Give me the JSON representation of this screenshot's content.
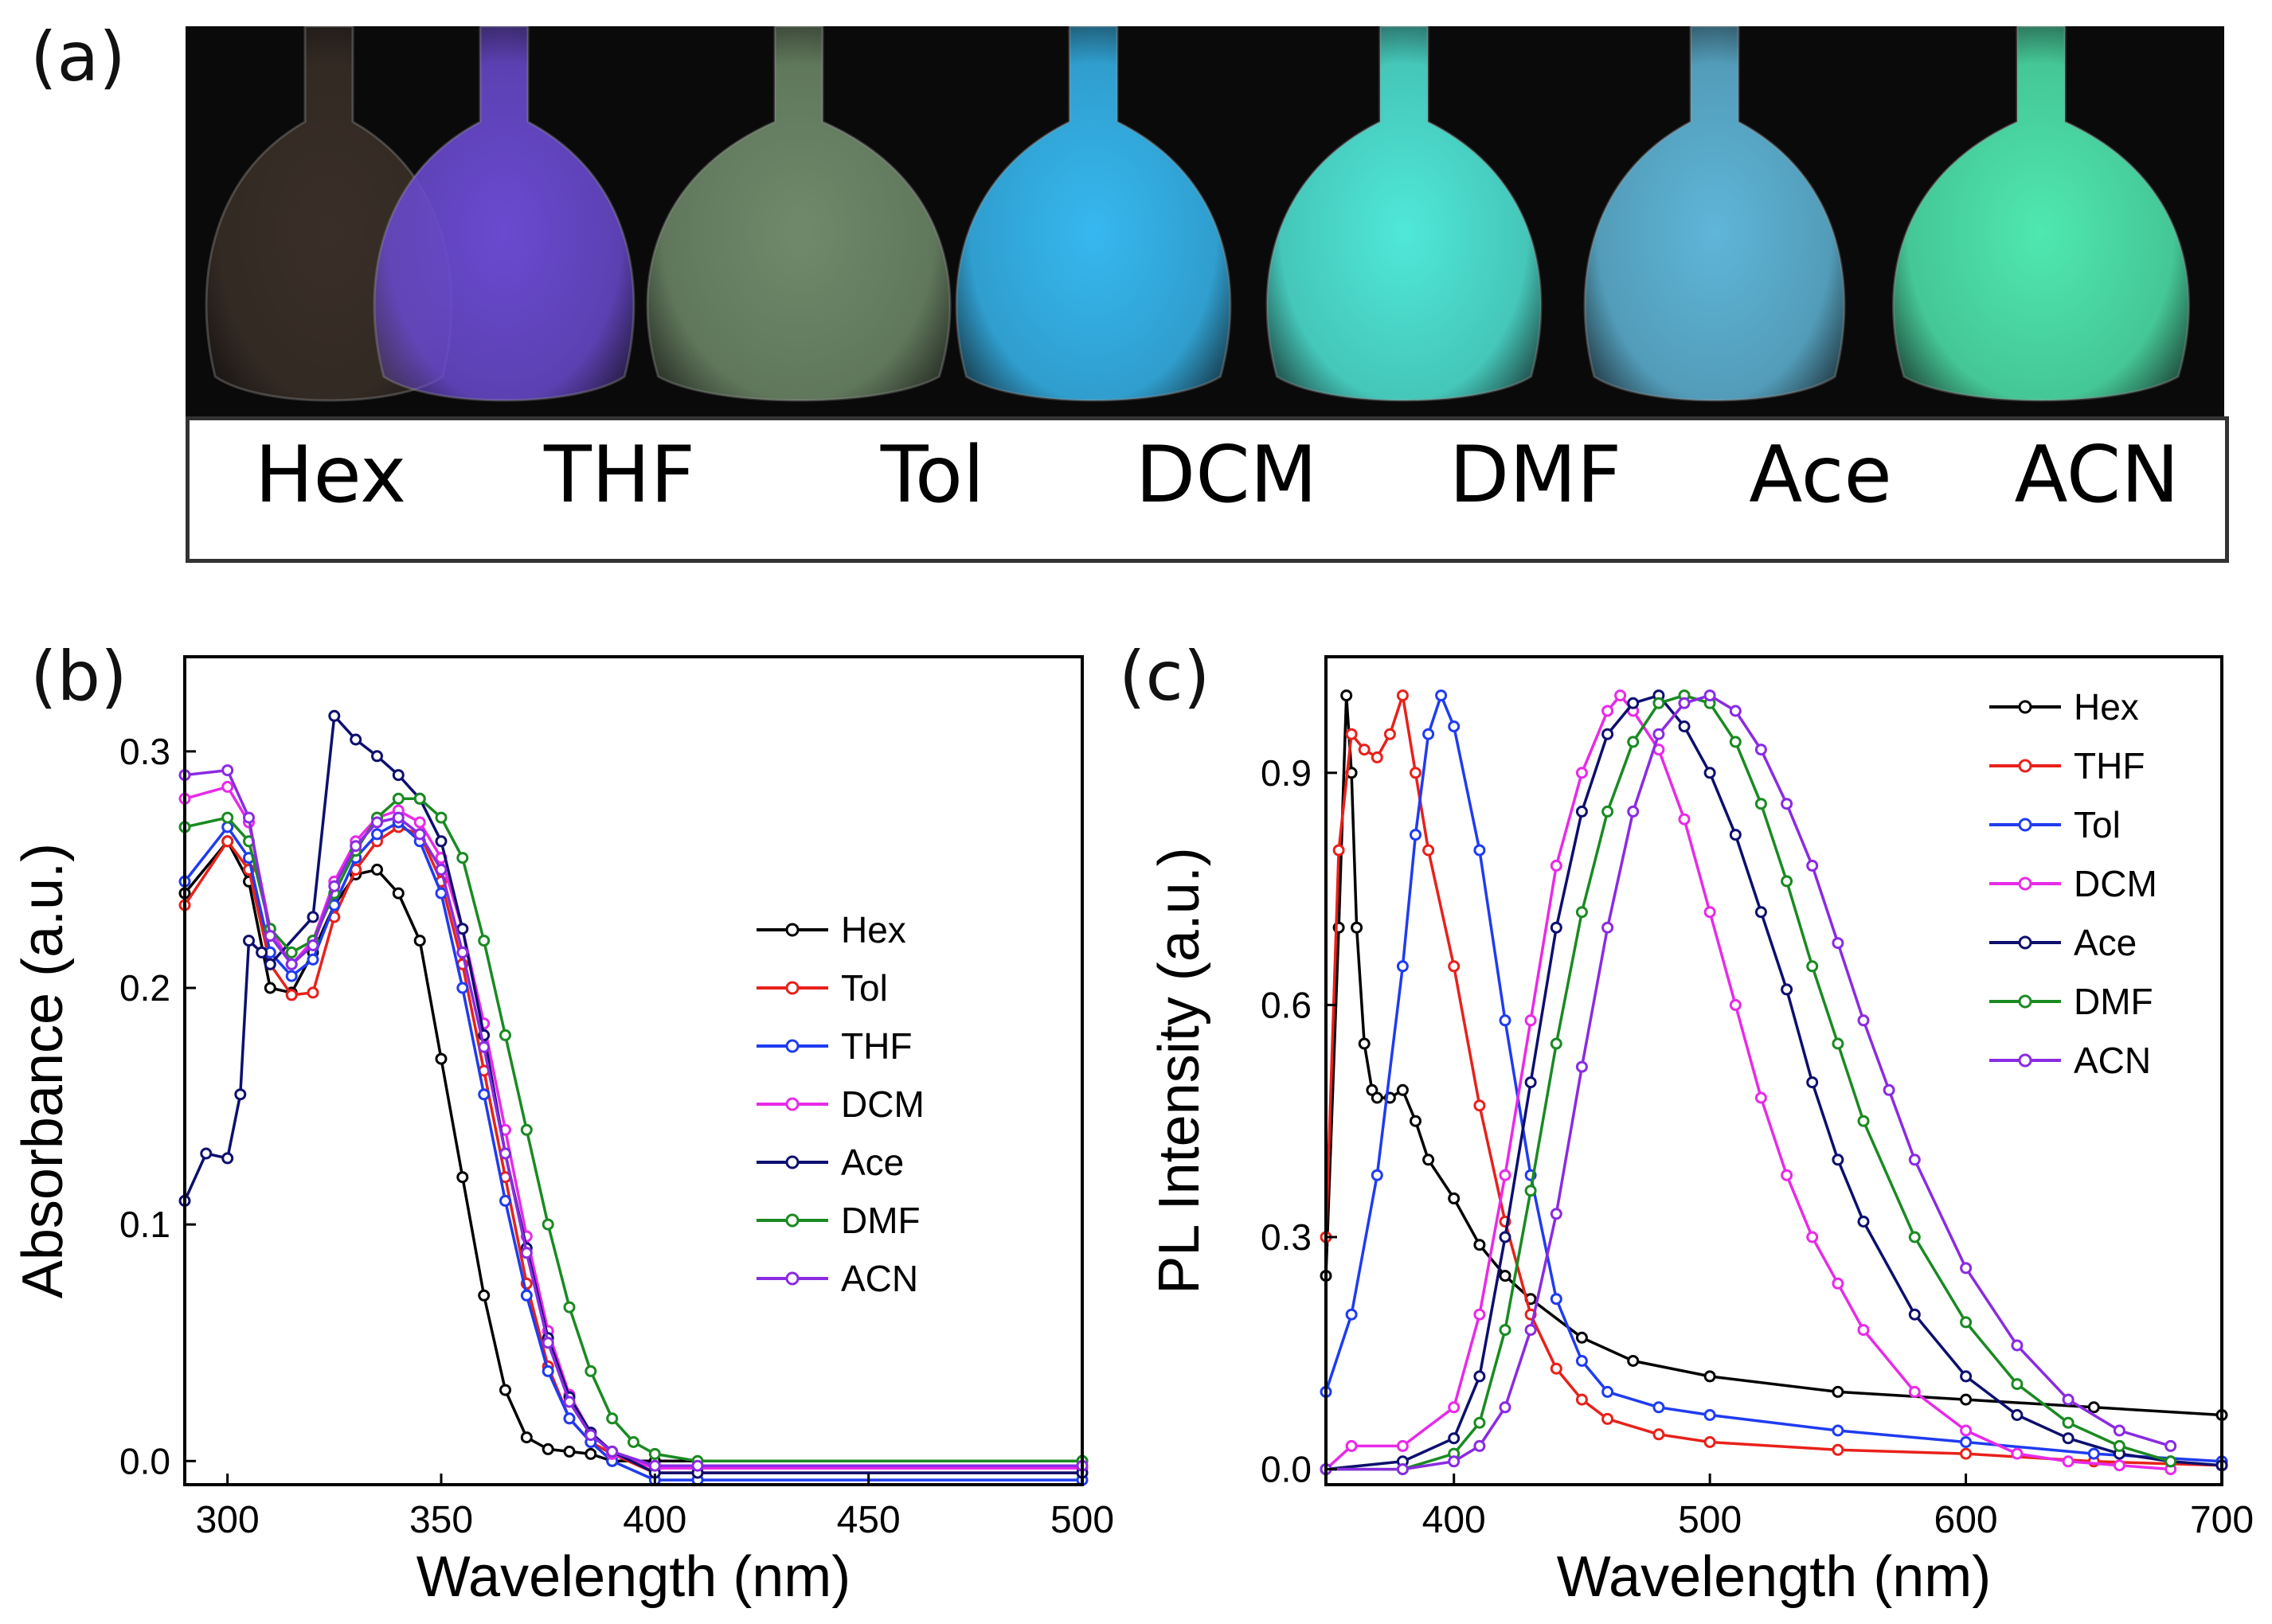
{
  "panels": {
    "a": "(a)",
    "b": "(b)",
    "c": "(c)"
  },
  "photo": {
    "solvents": [
      "Hex",
      "THF",
      "Tol",
      "DCM",
      "DMF",
      "Ace",
      "ACN"
    ],
    "glow_colors": [
      "#3a2f28",
      "#6a4ad0",
      "#6f8a6a",
      "#36b8f0",
      "#4fe8d8",
      "#5fb6d8",
      "#4fe8b0"
    ]
  },
  "chart_data": [
    {
      "panel": "b",
      "type": "line",
      "title": "",
      "xlabel": "Wavelength (nm)",
      "ylabel": "Absorbance (a.u.)",
      "xlim": [
        290,
        500
      ],
      "ylim": [
        -0.01,
        0.34
      ],
      "xticks": [
        "300",
        "350",
        "400",
        "450",
        "500"
      ],
      "yticks": [
        "0.0",
        "0.1",
        "0.2",
        "0.3"
      ],
      "legend_position": "right-middle",
      "series": [
        {
          "name": "Hex",
          "color": "#000000",
          "x": [
            290,
            300,
            305,
            310,
            315,
            320,
            325,
            330,
            335,
            340,
            345,
            350,
            355,
            360,
            365,
            370,
            375,
            380,
            385,
            390,
            400,
            500
          ],
          "y": [
            0.24,
            0.262,
            0.245,
            0.2,
            0.198,
            0.215,
            0.235,
            0.248,
            0.25,
            0.24,
            0.22,
            0.17,
            0.12,
            0.07,
            0.03,
            0.01,
            0.005,
            0.004,
            0.003,
            0.0,
            0.0,
            0.0
          ]
        },
        {
          "name": "Tol",
          "color": "#e8211b",
          "x": [
            290,
            300,
            305,
            310,
            315,
            320,
            325,
            330,
            335,
            340,
            345,
            350,
            355,
            360,
            365,
            370,
            375,
            380,
            385,
            390,
            400,
            410,
            500
          ],
          "y": [
            0.235,
            0.262,
            0.25,
            0.21,
            0.197,
            0.198,
            0.23,
            0.25,
            0.262,
            0.268,
            0.265,
            0.245,
            0.21,
            0.165,
            0.12,
            0.075,
            0.04,
            0.018,
            0.008,
            0.003,
            -0.005,
            -0.005,
            -0.005
          ]
        },
        {
          "name": "THF",
          "color": "#1f3cf0",
          "x": [
            290,
            300,
            305,
            310,
            315,
            320,
            325,
            330,
            335,
            340,
            345,
            350,
            355,
            360,
            365,
            370,
            375,
            380,
            385,
            390,
            400,
            410,
            500
          ],
          "y": [
            0.245,
            0.268,
            0.255,
            0.215,
            0.205,
            0.212,
            0.235,
            0.255,
            0.265,
            0.27,
            0.262,
            0.24,
            0.2,
            0.155,
            0.11,
            0.07,
            0.038,
            0.018,
            0.008,
            0.0,
            -0.008,
            -0.008,
            -0.008
          ]
        },
        {
          "name": "DCM",
          "color": "#e82ae8",
          "x": [
            290,
            300,
            305,
            310,
            315,
            320,
            325,
            330,
            335,
            340,
            345,
            350,
            355,
            360,
            365,
            370,
            375,
            380,
            385,
            390,
            400,
            410,
            500
          ],
          "y": [
            0.28,
            0.285,
            0.27,
            0.225,
            0.21,
            0.22,
            0.245,
            0.262,
            0.272,
            0.275,
            0.27,
            0.255,
            0.225,
            0.185,
            0.14,
            0.095,
            0.055,
            0.028,
            0.012,
            0.003,
            -0.003,
            -0.003,
            -0.003
          ]
        },
        {
          "name": "Ace",
          "color": "#0d0f6e",
          "x": [
            290,
            295,
            300,
            303,
            305,
            308,
            310,
            320,
            325,
            330,
            335,
            340,
            345,
            350,
            355,
            360,
            365,
            370,
            375,
            380,
            385,
            390,
            400,
            410,
            500
          ],
          "y": [
            0.11,
            0.13,
            0.128,
            0.155,
            0.22,
            0.215,
            0.21,
            0.23,
            0.315,
            0.305,
            0.298,
            0.29,
            0.28,
            0.262,
            0.225,
            0.18,
            0.13,
            0.09,
            0.052,
            0.027,
            0.012,
            0.004,
            -0.005,
            -0.005,
            -0.005
          ]
        },
        {
          "name": "DMF",
          "color": "#1a8a22",
          "x": [
            290,
            300,
            305,
            310,
            315,
            320,
            325,
            330,
            335,
            340,
            345,
            350,
            355,
            360,
            365,
            370,
            375,
            380,
            385,
            390,
            395,
            400,
            410,
            500
          ],
          "y": [
            0.268,
            0.272,
            0.262,
            0.225,
            0.215,
            0.22,
            0.24,
            0.258,
            0.272,
            0.28,
            0.28,
            0.272,
            0.255,
            0.22,
            0.18,
            0.14,
            0.1,
            0.065,
            0.038,
            0.018,
            0.008,
            0.003,
            0.0,
            0.0
          ]
        },
        {
          "name": "ACN",
          "color": "#8a2be2",
          "x": [
            290,
            300,
            305,
            310,
            315,
            320,
            325,
            330,
            335,
            340,
            345,
            350,
            355,
            360,
            365,
            370,
            375,
            380,
            385,
            390,
            400,
            410,
            500
          ],
          "y": [
            0.29,
            0.292,
            0.272,
            0.222,
            0.21,
            0.218,
            0.243,
            0.26,
            0.27,
            0.272,
            0.265,
            0.25,
            0.215,
            0.175,
            0.13,
            0.088,
            0.05,
            0.025,
            0.011,
            0.004,
            -0.002,
            -0.002,
            -0.002
          ]
        }
      ]
    },
    {
      "panel": "c",
      "type": "line",
      "title": "",
      "xlabel": "Wavelength (nm)",
      "ylabel": "PL Intensity (a.u.)",
      "xlim": [
        350,
        700
      ],
      "ylim": [
        -0.02,
        1.05
      ],
      "xticks": [
        "400",
        "500",
        "600",
        "700"
      ],
      "yticks": [
        "0.0",
        "0.3",
        "0.6",
        "0.9"
      ],
      "legend_position": "top-right",
      "series": [
        {
          "name": "Hex",
          "color": "#000000",
          "x": [
            350,
            355,
            358,
            360,
            362,
            365,
            368,
            370,
            375,
            380,
            385,
            390,
            400,
            410,
            420,
            430,
            450,
            470,
            500,
            550,
            600,
            650,
            700
          ],
          "y": [
            0.25,
            0.7,
            1.0,
            0.9,
            0.7,
            0.55,
            0.49,
            0.48,
            0.48,
            0.49,
            0.45,
            0.4,
            0.35,
            0.29,
            0.25,
            0.22,
            0.17,
            0.14,
            0.12,
            0.1,
            0.09,
            0.08,
            0.07
          ]
        },
        {
          "name": "THF",
          "color": "#e8211b",
          "x": [
            350,
            355,
            360,
            365,
            370,
            375,
            380,
            385,
            390,
            400,
            410,
            420,
            430,
            440,
            450,
            460,
            480,
            500,
            550,
            600,
            650,
            700
          ],
          "y": [
            0.3,
            0.8,
            0.95,
            0.93,
            0.92,
            0.95,
            1.0,
            0.9,
            0.8,
            0.65,
            0.47,
            0.32,
            0.2,
            0.13,
            0.09,
            0.065,
            0.045,
            0.035,
            0.025,
            0.02,
            0.01,
            0.005
          ]
        },
        {
          "name": "Tol",
          "color": "#1f3cf0",
          "x": [
            350,
            360,
            370,
            380,
            385,
            390,
            395,
            400,
            410,
            420,
            430,
            440,
            450,
            460,
            480,
            500,
            550,
            600,
            650,
            700
          ],
          "y": [
            0.1,
            0.2,
            0.38,
            0.65,
            0.82,
            0.95,
            1.0,
            0.96,
            0.8,
            0.58,
            0.38,
            0.22,
            0.14,
            0.1,
            0.08,
            0.07,
            0.05,
            0.035,
            0.02,
            0.01
          ]
        },
        {
          "name": "DCM",
          "color": "#e82ae8",
          "x": [
            350,
            360,
            380,
            400,
            410,
            420,
            430,
            440,
            450,
            460,
            465,
            470,
            480,
            490,
            500,
            510,
            520,
            530,
            540,
            550,
            560,
            580,
            600,
            620,
            640,
            660,
            680
          ],
          "y": [
            0.0,
            0.03,
            0.03,
            0.08,
            0.2,
            0.38,
            0.58,
            0.78,
            0.9,
            0.98,
            1.0,
            0.98,
            0.93,
            0.84,
            0.72,
            0.6,
            0.48,
            0.38,
            0.3,
            0.24,
            0.18,
            0.1,
            0.05,
            0.02,
            0.01,
            0.005,
            0.0
          ]
        },
        {
          "name": "Ace",
          "color": "#0d0f6e",
          "x": [
            350,
            380,
            400,
            410,
            420,
            430,
            440,
            450,
            460,
            470,
            480,
            490,
            500,
            510,
            520,
            530,
            540,
            550,
            560,
            580,
            600,
            620,
            640,
            660,
            680,
            700
          ],
          "y": [
            0.0,
            0.01,
            0.04,
            0.12,
            0.3,
            0.5,
            0.7,
            0.85,
            0.95,
            0.99,
            1.0,
            0.96,
            0.9,
            0.82,
            0.72,
            0.62,
            0.5,
            0.4,
            0.32,
            0.2,
            0.12,
            0.07,
            0.04,
            0.02,
            0.01,
            0.005
          ]
        },
        {
          "name": "DMF",
          "color": "#1a8a22",
          "x": [
            350,
            380,
            400,
            410,
            420,
            430,
            440,
            450,
            460,
            470,
            480,
            490,
            500,
            510,
            520,
            530,
            540,
            550,
            560,
            580,
            600,
            620,
            640,
            660,
            680
          ],
          "y": [
            0.0,
            0.0,
            0.02,
            0.06,
            0.18,
            0.36,
            0.55,
            0.72,
            0.85,
            0.94,
            0.99,
            1.0,
            0.99,
            0.94,
            0.86,
            0.76,
            0.65,
            0.55,
            0.45,
            0.3,
            0.19,
            0.11,
            0.06,
            0.03,
            0.01
          ]
        },
        {
          "name": "ACN",
          "color": "#8a2be2",
          "x": [
            350,
            380,
            400,
            410,
            420,
            430,
            440,
            450,
            460,
            470,
            480,
            490,
            500,
            510,
            520,
            530,
            540,
            550,
            560,
            570,
            580,
            600,
            620,
            640,
            660,
            680
          ],
          "y": [
            0.0,
            0.0,
            0.01,
            0.03,
            0.08,
            0.18,
            0.33,
            0.52,
            0.7,
            0.85,
            0.95,
            0.99,
            1.0,
            0.98,
            0.93,
            0.86,
            0.78,
            0.68,
            0.58,
            0.49,
            0.4,
            0.26,
            0.16,
            0.09,
            0.05,
            0.03
          ]
        }
      ]
    }
  ]
}
